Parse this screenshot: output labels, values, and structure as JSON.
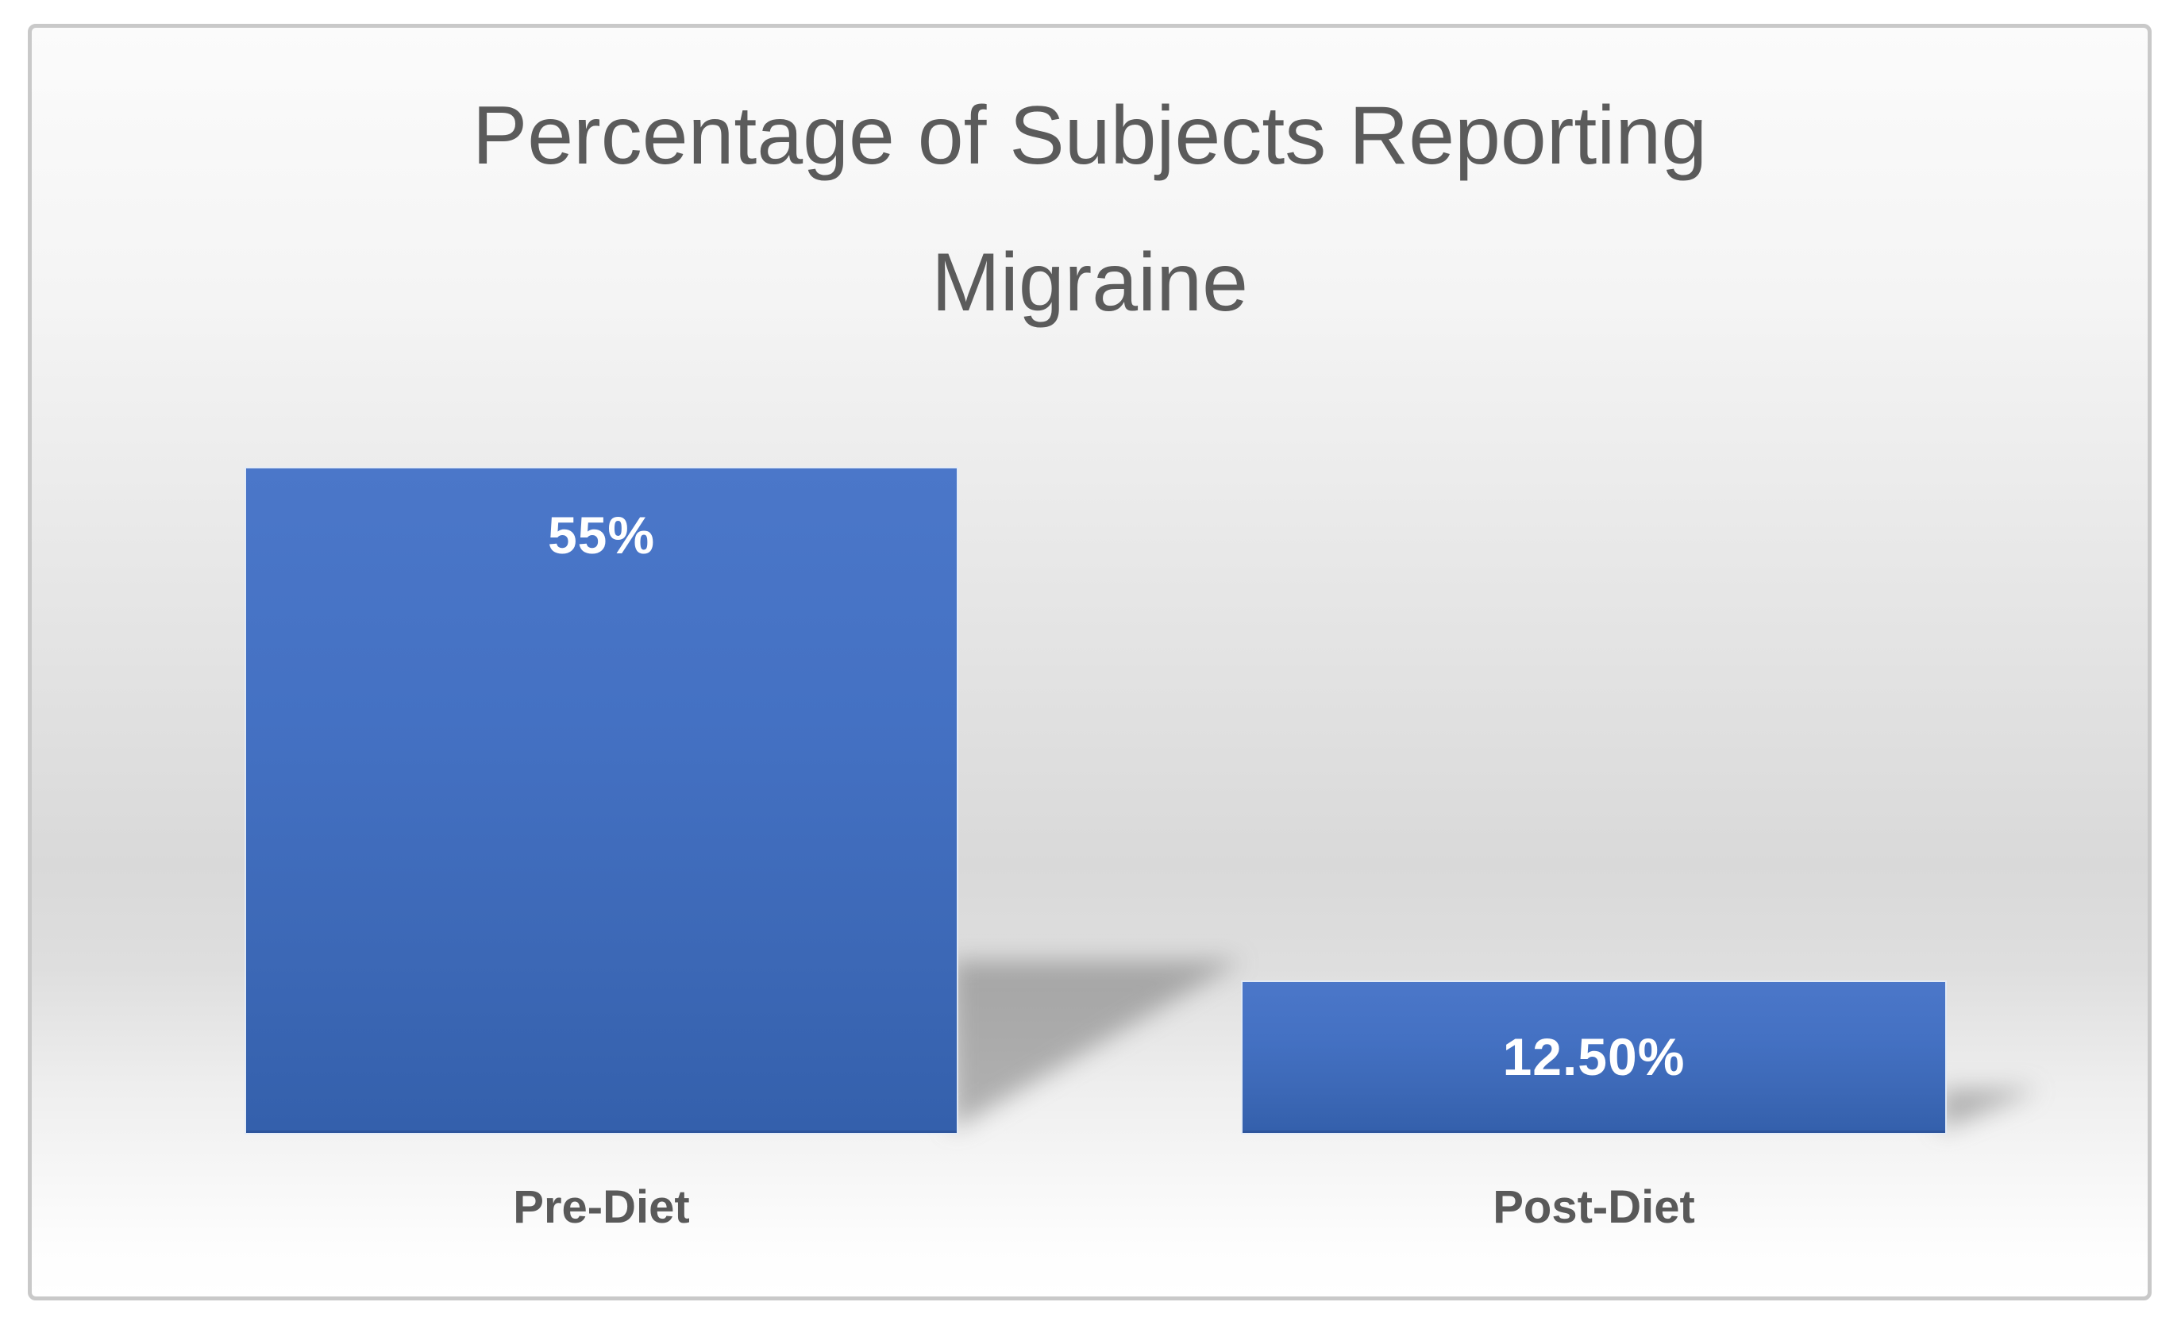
{
  "chart_data": {
    "type": "bar",
    "title": "Percentage of Subjects Reporting Migraine",
    "categories": [
      "Pre-Diet",
      "Post-Diet"
    ],
    "values": [
      55,
      12.5
    ],
    "data_labels": [
      "55%",
      "12.50%"
    ],
    "series": [
      {
        "name": "Percentage of Subjects Reporting Migraine",
        "values": [
          55,
          12.5
        ]
      }
    ],
    "xlabel": "",
    "ylabel": "",
    "ylim": [
      0,
      55
    ],
    "axes_visible": false,
    "gridlines": false,
    "legend_position": "none",
    "data_label_position": "inside-end",
    "bar_shadow": "perspective-lower-right",
    "colors": {
      "bar_fill": "#4472c4",
      "bar_fill_dark": "#3460ac",
      "bar_edge_highlight": "#e2ebf8",
      "data_label": "#ffffff",
      "title": "#5b5b5b",
      "category_label": "#595959",
      "frame_border": "#c9c9c9",
      "background_light": "#fbfbfb",
      "background_mid": "#d9d9d9"
    }
  }
}
